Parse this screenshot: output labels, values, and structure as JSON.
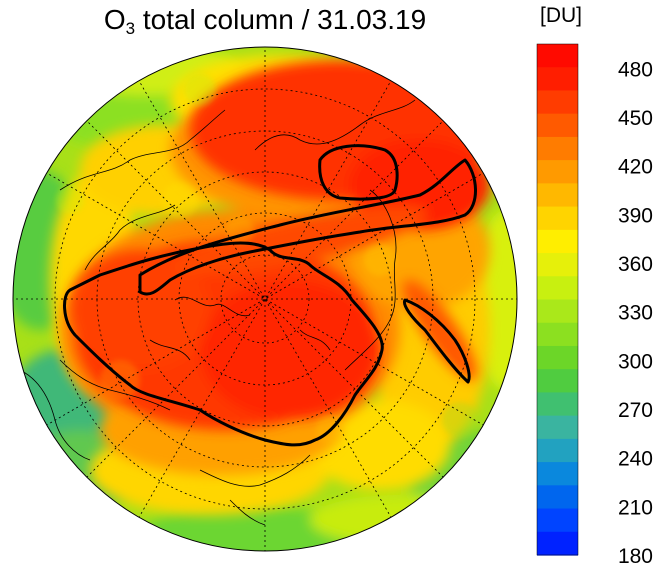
{
  "title": {
    "main": "O",
    "subscript": "3",
    "rest": " total column / 31.03.19"
  },
  "colorbar": {
    "unit": "[DU]",
    "ticks": [
      "480",
      "450",
      "420",
      "390",
      "360",
      "330",
      "300",
      "270",
      "240",
      "210",
      "180"
    ],
    "min": 180,
    "max": 495,
    "colors": [
      "#0022ff",
      "#0044ff",
      "#0066ee",
      "#0a88dd",
      "#22a2c0",
      "#3ab4a0",
      "#40c070",
      "#50cc40",
      "#6cd628",
      "#8ce020",
      "#aae81a",
      "#c8f010",
      "#e6f00a",
      "#ffee00",
      "#ffd400",
      "#ffb800",
      "#ff9a00",
      "#ff7c00",
      "#ff5a00",
      "#ff3c00",
      "#ff1e00",
      "#ff0a00"
    ]
  },
  "map": {
    "projection": "north polar stereographic",
    "field": "total ozone column",
    "contour_value_DU": 450
  }
}
